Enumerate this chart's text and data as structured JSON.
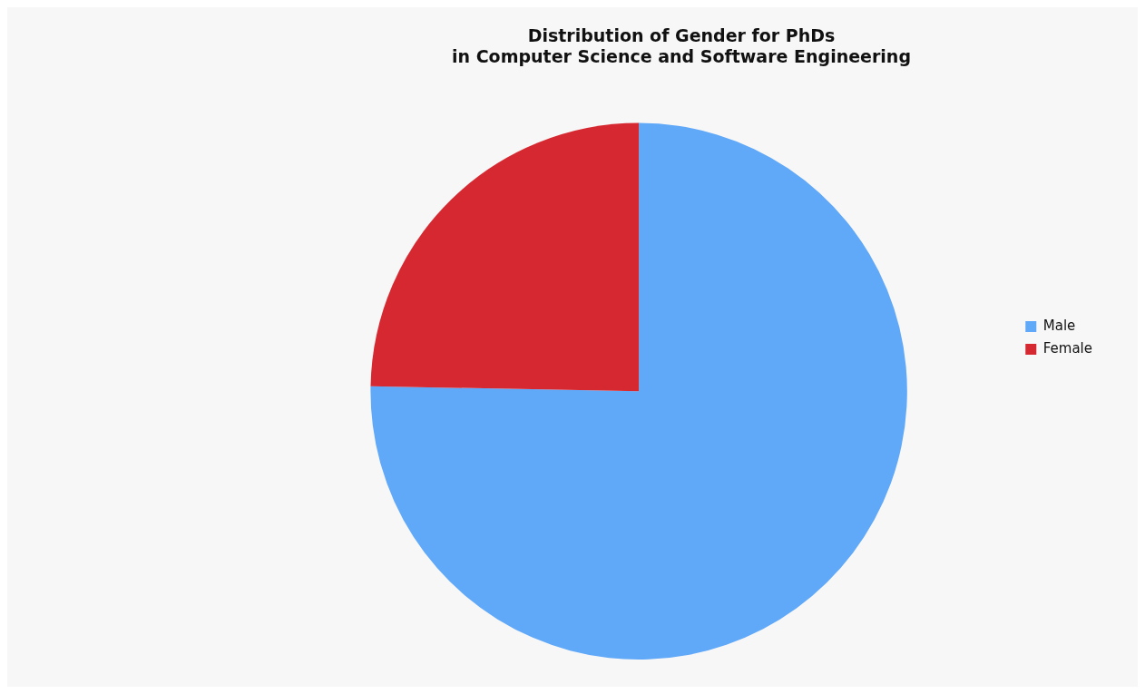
{
  "chart_data": {
    "type": "pie",
    "title": "Distribution of Gender for PhDs\nin Computer Science and Software Engineering",
    "categories": [
      "Male",
      "Female"
    ],
    "values": [
      75.3,
      24.7
    ],
    "colors": [
      "#60a8f8",
      "#d62830"
    ],
    "legend": "right"
  }
}
